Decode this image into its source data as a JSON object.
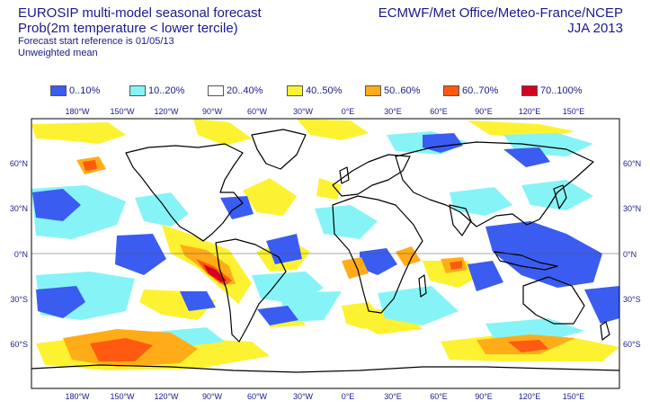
{
  "header": {
    "title_line1": "EUROSIP multi-model seasonal forecast",
    "title_line2": "Prob(2m temperature < lower tercile)",
    "forecast_start": "Forecast start reference is 01/05/13",
    "weighting": "Unweighted mean",
    "centres": "ECMWF/Met Office/Meteo-France/NCEP",
    "season": "JJA 2013"
  },
  "legend": [
    {
      "label": "0..10%",
      "color": "#3a5cf0"
    },
    {
      "label": "10..20%",
      "color": "#86f4f6"
    },
    {
      "label": "20..40%",
      "color": "#ffffff"
    },
    {
      "label": "40..50%",
      "color": "#fdf232"
    },
    {
      "label": "50..60%",
      "color": "#ffac18"
    },
    {
      "label": "60..70%",
      "color": "#ff5a10"
    },
    {
      "label": "70..100%",
      "color": "#d40020"
    }
  ],
  "axes": {
    "lon_ticks": [
      "180°W",
      "150°W",
      "120°W",
      "90°W",
      "60°W",
      "30°W",
      "0°E",
      "30°E",
      "60°E",
      "90°E",
      "120°E",
      "150°E"
    ],
    "lat_ticks": [
      "60°N",
      "30°N",
      "0°N",
      "30°S",
      "60°S"
    ]
  }
}
